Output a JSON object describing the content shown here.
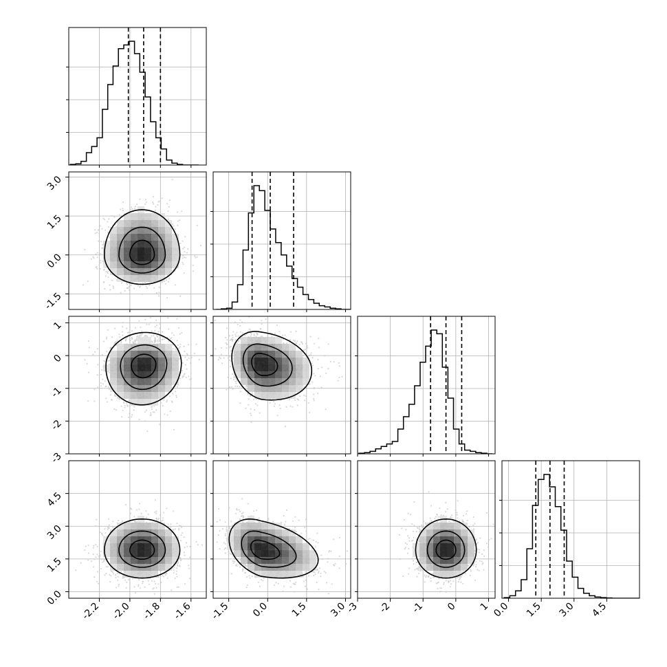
{
  "chart_data": {
    "type": "corner",
    "grid": true,
    "quantile_lines": "dashed",
    "parameters": [
      {
        "range": [
          -2.4,
          -1.5
        ],
        "ticks": [
          "-2.2",
          "-2.0",
          "-1.8",
          "-1.6"
        ],
        "tick_values": [
          -2.2,
          -2.0,
          -1.8,
          -1.6
        ],
        "quantiles": [
          -2.01,
          -1.91,
          -1.8
        ]
      },
      {
        "range": [
          -2.1,
          3.2
        ],
        "ticks": [
          "-1.5",
          "0.0",
          "1.5",
          "3.0"
        ],
        "tick_values": [
          -1.5,
          0.0,
          1.5,
          3.0
        ],
        "quantiles": [
          -0.6,
          0.1,
          1.0
        ]
      },
      {
        "range": [
          -3.0,
          1.2
        ],
        "ticks": [
          "-3",
          "-2",
          "-1",
          "0",
          "1"
        ],
        "tick_values": [
          -3,
          -2,
          -1,
          0,
          1
        ],
        "quantiles": [
          -0.77,
          -0.3,
          0.18
        ]
      },
      {
        "range": [
          -0.3,
          6.0
        ],
        "ticks": [
          "0.0",
          "1.5",
          "3.0",
          "4.5"
        ],
        "tick_values": [
          0.0,
          1.5,
          3.0,
          4.5
        ],
        "quantiles": [
          1.25,
          1.9,
          2.55
        ]
      }
    ],
    "histograms": [
      {
        "bins": [
          -2.39,
          -2.355,
          -2.32,
          -2.285,
          -2.25,
          -2.215,
          -2.18,
          -2.145,
          -2.11,
          -2.075,
          -2.04,
          -2.005,
          -1.97,
          -1.935,
          -1.9,
          -1.865,
          -1.83,
          -1.795,
          -1.76,
          -1.725,
          -1.69,
          -1.655,
          -1.62,
          -1.585,
          -1.55
        ],
        "counts": [
          0.005,
          0.01,
          0.03,
          0.1,
          0.15,
          0.22,
          0.45,
          0.65,
          0.8,
          0.94,
          0.97,
          1.0,
          0.9,
          0.75,
          0.55,
          0.35,
          0.22,
          0.13,
          0.04,
          0.015,
          0.005,
          0.0,
          0.0,
          0.0
        ]
      },
      {
        "bins": [
          -2.0,
          -1.79,
          -1.58,
          -1.37,
          -1.16,
          -0.95,
          -0.74,
          -0.53,
          -0.32,
          -0.11,
          0.1,
          0.31,
          0.52,
          0.73,
          0.94,
          1.15,
          1.36,
          1.57,
          1.78,
          1.99,
          2.2,
          2.41,
          2.62,
          2.83,
          3.04,
          3.25
        ],
        "counts": [
          0.0,
          0.005,
          0.01,
          0.06,
          0.2,
          0.48,
          0.78,
          1.0,
          0.96,
          0.8,
          0.65,
          0.54,
          0.44,
          0.35,
          0.25,
          0.18,
          0.12,
          0.08,
          0.05,
          0.03,
          0.02,
          0.01,
          0.005,
          0.0,
          0.0
        ]
      },
      {
        "bins": [
          -2.96,
          -2.79,
          -2.62,
          -2.45,
          -2.28,
          -2.11,
          -1.94,
          -1.77,
          -1.6,
          -1.43,
          -1.26,
          -1.09,
          -0.92,
          -0.75,
          -0.58,
          -0.41,
          -0.24,
          -0.07,
          0.1,
          0.27,
          0.44,
          0.61,
          0.78,
          0.95,
          1.12
        ],
        "counts": [
          0.005,
          0.01,
          0.02,
          0.04,
          0.06,
          0.08,
          0.1,
          0.2,
          0.3,
          0.4,
          0.55,
          0.74,
          0.87,
          1.0,
          0.97,
          0.7,
          0.45,
          0.2,
          0.08,
          0.03,
          0.02,
          0.01,
          0.005,
          0.0
        ]
      },
      {
        "bins": [
          -0.2,
          0.06,
          0.32,
          0.58,
          0.84,
          1.1,
          1.36,
          1.62,
          1.88,
          2.14,
          2.4,
          2.66,
          2.92,
          3.18,
          3.44,
          3.7,
          3.96,
          4.22,
          4.48,
          4.74,
          5.0,
          5.26,
          5.52,
          5.78,
          6.04
        ],
        "counts": [
          0.005,
          0.02,
          0.06,
          0.15,
          0.4,
          0.75,
          0.96,
          1.0,
          0.9,
          0.74,
          0.55,
          0.3,
          0.17,
          0.08,
          0.04,
          0.02,
          0.01,
          0.005,
          0.002,
          0.0,
          0.0,
          0.0,
          0.0,
          0.0
        ]
      }
    ],
    "pairs": [
      {
        "x": 0,
        "y": 1,
        "mean": [
          -1.92,
          0.0
        ],
        "sd": [
          0.12,
          0.55
        ],
        "rho": 0.0,
        "skew": [
          0.0,
          0.9
        ]
      },
      {
        "x": 0,
        "y": 2,
        "mean": [
          -1.91,
          -0.28
        ],
        "sd": [
          0.12,
          0.48
        ],
        "rho": 0.05,
        "skew": [
          0.0,
          -0.4
        ]
      },
      {
        "x": 0,
        "y": 3,
        "mean": [
          -1.92,
          1.9
        ],
        "sd": [
          0.12,
          0.62
        ],
        "rho": 0.0,
        "skew": [
          0.0,
          0.2
        ]
      },
      {
        "x": 1,
        "y": 2,
        "mean": [
          -0.25,
          -0.25
        ],
        "sd": [
          0.55,
          0.48
        ],
        "rho": -0.2,
        "skew": [
          1.2,
          -0.2
        ]
      },
      {
        "x": 1,
        "y": 3,
        "mean": [
          -0.25,
          1.9
        ],
        "sd": [
          0.6,
          0.62
        ],
        "rho": -0.35,
        "skew": [
          1.3,
          0.2
        ]
      },
      {
        "x": 2,
        "y": 3,
        "mean": [
          -0.3,
          1.9
        ],
        "sd": [
          0.45,
          0.62
        ],
        "rho": 0.0,
        "skew": [
          0.0,
          0.2
        ]
      }
    ]
  },
  "style": {
    "line_color": "#000000",
    "grid_color": "#b0b0b0",
    "point_color": "#c8c8c8",
    "background": "#ffffff"
  }
}
